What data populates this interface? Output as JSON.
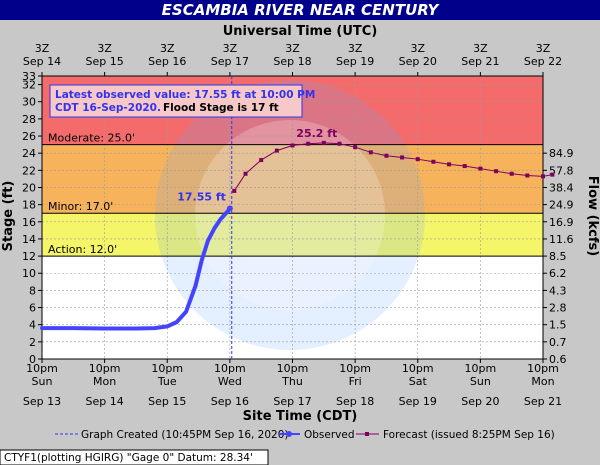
{
  "title": "ESCAMBIA RIVER NEAR CENTURY",
  "top_axis_title": "Universal Time (UTC)",
  "bottom_axis_title": "Site Time (CDT)",
  "left_axis_title": "Stage (ft)",
  "right_axis_title": "Flow (kcfs)",
  "info_box": {
    "line1": "Latest observed value: 17.55 ft at 10:00 PM",
    "line2": "CDT 16-Sep-2020.",
    "line2b": "Flood Stage is 17 ft"
  },
  "thresholds": [
    {
      "name": "Moderate",
      "label": "Moderate: 25.0'",
      "value": 25.0
    },
    {
      "name": "Minor",
      "label": "Minor: 17.0'",
      "value": 17.0
    },
    {
      "name": "Action",
      "label": "Action: 12.0'",
      "value": 12.0
    }
  ],
  "colors": {
    "moderate_band": "#f56b6b",
    "minor_band": "#f7b25c",
    "action_band": "#f5f56a",
    "observed": "#4444ff",
    "forecast": "#800060",
    "title_bar": "#00008b",
    "info_text": "#3333ee"
  },
  "legend": {
    "created": "Graph Created (10:45PM Sep 16, 2020)",
    "observed": "Observed",
    "forecast": "Forecast (issued 8:25PM Sep 16)"
  },
  "footer": "CTYF1(plotting HGIRG) \"Gage 0\" Datum: 28.34'",
  "chart_data": {
    "type": "line",
    "ylim": [
      0,
      33
    ],
    "y_ticks": [
      0,
      2,
      4,
      6,
      8,
      10,
      12,
      14,
      16,
      18,
      20,
      22,
      24,
      26,
      28,
      30,
      32,
      33
    ],
    "flow_ticks": [
      {
        "stage": 0,
        "label": "0.6"
      },
      {
        "stage": 2,
        "label": "0.7"
      },
      {
        "stage": 4,
        "label": "1.5"
      },
      {
        "stage": 6,
        "label": "2.8"
      },
      {
        "stage": 8,
        "label": "4.3"
      },
      {
        "stage": 10,
        "label": "6.2"
      },
      {
        "stage": 12,
        "label": "8.5"
      },
      {
        "stage": 14,
        "label": "11.6"
      },
      {
        "stage": 16,
        "label": "16.9"
      },
      {
        "stage": 18,
        "label": "24.9"
      },
      {
        "stage": 20,
        "label": "38.4"
      },
      {
        "stage": 22,
        "label": "57.8"
      },
      {
        "stage": 24,
        "label": "84.9"
      }
    ],
    "bottom_ticks": [
      {
        "l1": "10pm",
        "l2": "Sun",
        "l3": "Sep 13"
      },
      {
        "l1": "10pm",
        "l2": "Mon",
        "l3": "Sep 14"
      },
      {
        "l1": "10pm",
        "l2": "Tue",
        "l3": "Sep 15"
      },
      {
        "l1": "10pm",
        "l2": "Wed",
        "l3": "Sep 16"
      },
      {
        "l1": "10pm",
        "l2": "Thu",
        "l3": "Sep 17"
      },
      {
        "l1": "10pm",
        "l2": "Fri",
        "l3": "Sep 18"
      },
      {
        "l1": "10pm",
        "l2": "Sat",
        "l3": "Sep 19"
      },
      {
        "l1": "10pm",
        "l2": "Sun",
        "l3": "Sep 20"
      },
      {
        "l1": "10pm",
        "l2": "Mon",
        "l3": "Sep 21"
      }
    ],
    "top_ticks": [
      {
        "l1": "3Z",
        "l2": "Sep 14"
      },
      {
        "l1": "3Z",
        "l2": "Sep 15"
      },
      {
        "l1": "3Z",
        "l2": "Sep 16"
      },
      {
        "l1": "3Z",
        "l2": "Sep 17"
      },
      {
        "l1": "3Z",
        "l2": "Sep 18"
      },
      {
        "l1": "3Z",
        "l2": "Sep 19"
      },
      {
        "l1": "3Z",
        "l2": "Sep 20"
      },
      {
        "l1": "3Z",
        "l2": "Sep 21"
      },
      {
        "l1": "3Z",
        "l2": "Sep 22"
      }
    ],
    "graph_created_day": 3.03,
    "observed": [
      {
        "x": 0,
        "y": 3.6
      },
      {
        "x": 0.5,
        "y": 3.6
      },
      {
        "x": 1.0,
        "y": 3.55
      },
      {
        "x": 1.5,
        "y": 3.55
      },
      {
        "x": 1.8,
        "y": 3.6
      },
      {
        "x": 2.0,
        "y": 3.8
      },
      {
        "x": 2.15,
        "y": 4.3
      },
      {
        "x": 2.3,
        "y": 5.5
      },
      {
        "x": 2.45,
        "y": 8.5
      },
      {
        "x": 2.55,
        "y": 11.5
      },
      {
        "x": 2.65,
        "y": 13.8
      },
      {
        "x": 2.75,
        "y": 15.2
      },
      {
        "x": 2.85,
        "y": 16.3
      },
      {
        "x": 2.95,
        "y": 17.1
      },
      {
        "x": 3.0,
        "y": 17.55
      }
    ],
    "observed_label": "17.55 ft",
    "forecast": [
      {
        "x": 3.07,
        "y": 19.6
      },
      {
        "x": 3.25,
        "y": 21.6
      },
      {
        "x": 3.5,
        "y": 23.2
      },
      {
        "x": 3.75,
        "y": 24.3
      },
      {
        "x": 4.0,
        "y": 24.9
      },
      {
        "x": 4.25,
        "y": 25.1
      },
      {
        "x": 4.5,
        "y": 25.2
      },
      {
        "x": 4.75,
        "y": 25.1
      },
      {
        "x": 5.0,
        "y": 24.7
      },
      {
        "x": 5.25,
        "y": 24.1
      },
      {
        "x": 5.5,
        "y": 23.7
      },
      {
        "x": 5.75,
        "y": 23.5
      },
      {
        "x": 6.0,
        "y": 23.3
      },
      {
        "x": 6.25,
        "y": 23.0
      },
      {
        "x": 6.5,
        "y": 22.7
      },
      {
        "x": 6.75,
        "y": 22.5
      },
      {
        "x": 7.0,
        "y": 22.2
      },
      {
        "x": 7.25,
        "y": 21.9
      },
      {
        "x": 7.5,
        "y": 21.6
      },
      {
        "x": 7.75,
        "y": 21.4
      },
      {
        "x": 8.0,
        "y": 21.3
      },
      {
        "x": 8.15,
        "y": 21.5
      }
    ],
    "forecast_peak_label": "25.2 ft"
  }
}
